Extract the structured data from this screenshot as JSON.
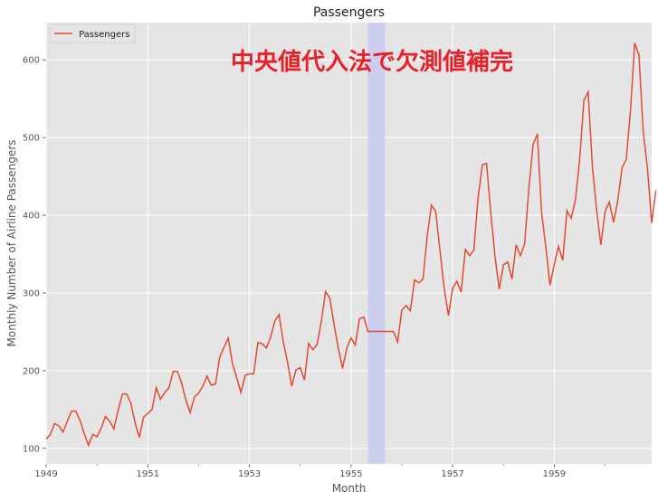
{
  "chart_data": {
    "type": "line",
    "title": "Passengers",
    "xlabel": "Month",
    "ylabel": "Monthly Number of Airline Passengers",
    "x_start": "1949-01",
    "x_end": "1960-12",
    "x_ticks": [
      "1949",
      "1951",
      "1953",
      "1955",
      "1957",
      "1959"
    ],
    "y_ticks": [
      100,
      200,
      300,
      400,
      500,
      600
    ],
    "ylim": [
      80,
      648
    ],
    "grid": true,
    "legend": {
      "placement": "top-left",
      "entries": [
        "Passengers"
      ]
    },
    "annotation": "中央値代入法で欠測値補完",
    "highlight": {
      "from": "1955-05",
      "to": "1955-09",
      "color": "#c8c8f0"
    },
    "series": [
      {
        "name": "Passengers",
        "color": "#e24a33",
        "values": [
          112,
          118,
          132,
          129,
          121,
          135,
          148,
          148,
          136,
          119,
          104,
          118,
          115,
          126,
          141,
          135,
          125,
          149,
          170,
          170,
          158,
          133,
          114,
          140,
          145,
          150,
          178,
          163,
          172,
          178,
          199,
          199,
          184,
          162,
          146,
          166,
          171,
          180,
          193,
          181,
          183,
          218,
          230,
          242,
          209,
          191,
          172,
          194,
          196,
          196,
          236,
          235,
          229,
          243,
          264,
          272,
          237,
          211,
          180,
          201,
          204,
          188,
          235,
          227,
          234,
          264,
          302,
          293,
          259,
          229,
          203,
          229,
          242,
          233,
          267,
          269,
          250.5,
          250.5,
          250.5,
          250.5,
          250.5,
          250.5,
          250.5,
          237,
          278,
          284,
          277,
          317,
          313,
          318,
          374,
          413,
          405,
          355,
          306,
          271,
          306,
          315,
          301,
          356,
          348,
          355,
          422,
          465,
          467,
          404,
          347,
          305,
          336,
          340,
          318,
          362,
          348,
          363,
          435,
          491,
          505,
          404,
          359,
          310,
          337,
          360,
          342,
          406,
          396,
          420,
          472,
          548,
          559,
          463,
          407,
          362,
          405,
          417,
          391,
          419,
          461,
          472,
          535,
          622,
          606,
          508,
          461,
          390,
          432
        ]
      }
    ]
  }
}
